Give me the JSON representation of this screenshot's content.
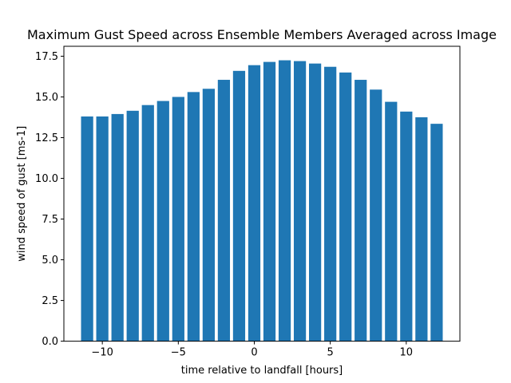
{
  "chart_data": {
    "type": "bar",
    "title": "Maximum Gust Speed across Ensemble Members Averaged across Image",
    "xlabel": "time relative to landfall [hours]",
    "ylabel": "wind speed of gust [ms-1]",
    "x": [
      -11,
      -10,
      -9,
      -8,
      -7,
      -6,
      -5,
      -4,
      -3,
      -2,
      -1,
      0,
      1,
      2,
      3,
      4,
      5,
      6,
      7,
      8,
      9,
      10,
      11,
      12
    ],
    "values": [
      13.8,
      13.8,
      13.95,
      14.15,
      14.5,
      14.75,
      15.0,
      15.3,
      15.5,
      16.05,
      16.6,
      16.95,
      17.15,
      17.25,
      17.2,
      17.05,
      16.85,
      16.5,
      16.05,
      15.45,
      14.7,
      14.1,
      13.75,
      13.35
    ],
    "bar_width": 0.8,
    "xlim": [
      -12.53,
      13.53
    ],
    "ylim": [
      0,
      18.11
    ],
    "xticks": [
      -10,
      -5,
      0,
      5,
      10
    ],
    "xtick_labels": [
      "−10",
      "−5",
      "0",
      "5",
      "10"
    ],
    "yticks": [
      0,
      2.5,
      5,
      7.5,
      10,
      12.5,
      15,
      17.5
    ],
    "ytick_labels": [
      "0.0",
      "2.5",
      "5.0",
      "7.5",
      "10.0",
      "12.5",
      "15.0",
      "17.5"
    ],
    "grid": false,
    "legend": "none",
    "colors": {
      "bar": "#1f77b4",
      "axis": "#000000"
    }
  }
}
